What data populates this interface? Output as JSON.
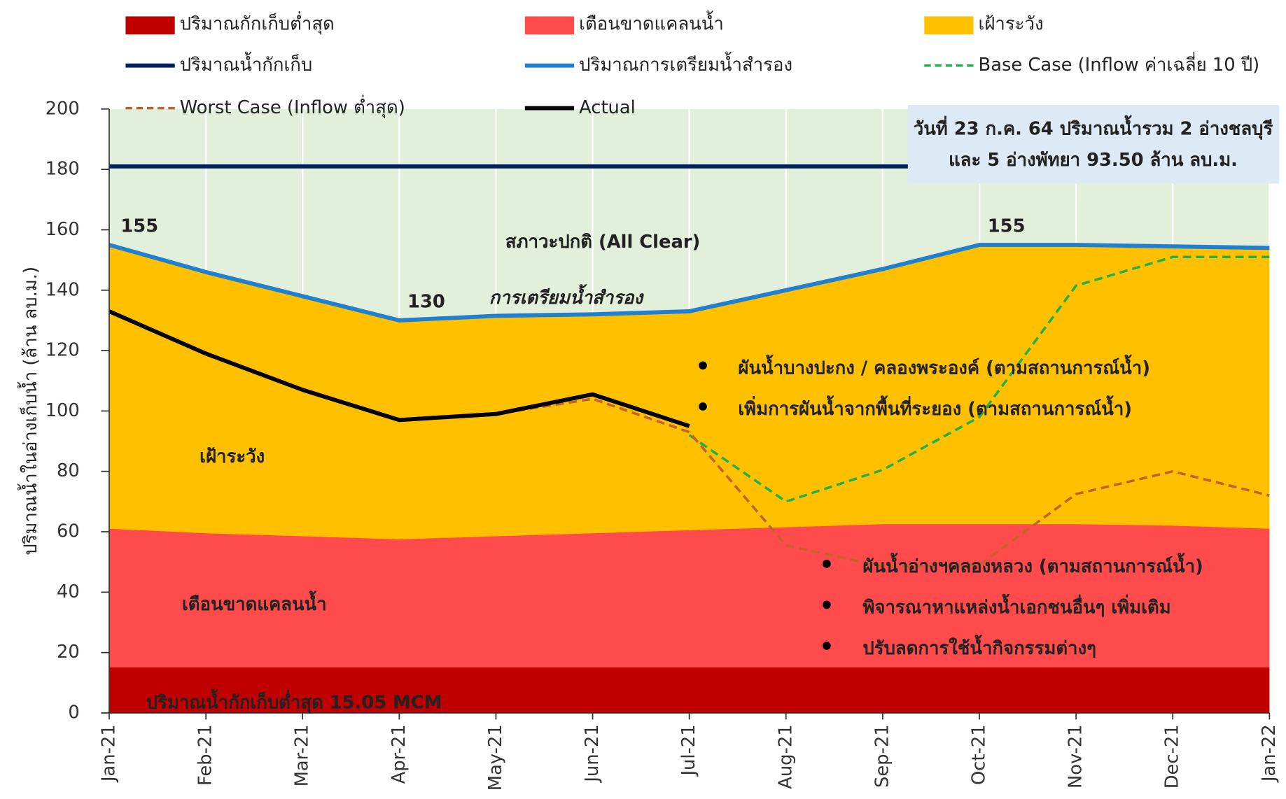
{
  "chart_data": {
    "type": "line",
    "y_label": "ปริมาณน้ำในอ่างเก็บน้ำ (ล้าน ลบ.ม.)",
    "categories": [
      "Jan-21",
      "Feb-21",
      "Mar-21",
      "Apr-21",
      "May-21",
      "Jun-21",
      "Jul-21",
      "Aug-21",
      "Sep-21",
      "Oct-21",
      "Nov-21",
      "Dec-21",
      "Jan-22"
    ],
    "ylim": [
      0,
      200
    ],
    "yticks": [
      0,
      20,
      40,
      60,
      80,
      100,
      120,
      140,
      160,
      180,
      200
    ],
    "grid": "x",
    "series": [
      {
        "name": "ปริมาณกักเก็บต่ำสุด",
        "kind": "area",
        "color": "#c00000",
        "values": [
          15.05,
          15.05,
          15.05,
          15.05,
          15.05,
          15.05,
          15.05,
          15.05,
          15.05,
          15.05,
          15.05,
          15.05,
          15.05
        ]
      },
      {
        "name": "เตือนขาดแคลนน้ำ",
        "kind": "area",
        "color": "#ff4b4b",
        "values": [
          61,
          59.5,
          58.5,
          57.5,
          58.5,
          59.5,
          60.5,
          61.5,
          62.5,
          62.5,
          62.5,
          62,
          61
        ]
      },
      {
        "name": "เฝ้าระวัง",
        "kind": "area",
        "color": "#ffc000",
        "values": [
          155,
          146,
          138,
          130,
          131.5,
          132,
          133,
          140,
          147,
          155,
          155,
          154.5,
          154
        ]
      },
      {
        "name": "ปริมาณน้ำกักเก็บ",
        "kind": "line",
        "color": "#002060",
        "values": [
          181,
          181,
          181,
          181,
          181,
          181,
          181,
          181,
          181,
          181,
          181,
          181,
          181
        ]
      },
      {
        "name": "ปริมาณการเตรียมน้ำสำรอง",
        "kind": "line",
        "color": "#1f7fd0",
        "values": [
          155,
          146,
          138,
          130,
          131.5,
          132,
          133,
          140,
          147,
          155,
          155,
          154.5,
          154
        ],
        "value_labels": [
          "155",
          null,
          null,
          "130",
          null,
          null,
          null,
          null,
          null,
          "155",
          null,
          null,
          null
        ]
      },
      {
        "name": "Base Case (Inflow ค่าเฉลี่ย 10 ปี)",
        "kind": "line",
        "dash": true,
        "color": "#22b04a",
        "values": [
          null,
          null,
          null,
          null,
          null,
          null,
          92,
          70,
          80.5,
          98,
          141.5,
          151,
          151
        ]
      },
      {
        "name": "Worst Case (Inflow ต่ำสุด)",
        "kind": "line",
        "dash": true,
        "color": "#c0632c",
        "values": [
          null,
          null,
          null,
          97,
          99,
          104,
          93,
          55.5,
          48.5,
          49,
          72.5,
          80,
          72
        ]
      },
      {
        "name": "Actual",
        "kind": "line",
        "color": "#000000",
        "values": [
          133,
          119,
          107,
          97,
          99,
          105.5,
          95,
          null,
          null,
          null,
          null,
          null,
          null
        ]
      }
    ],
    "zone_label": "สภาวะปกติ (All Clear)",
    "prep_label": "การเตรียมน้ำสำรอง",
    "watch_label": "เฝ้าระวัง",
    "warning_label": "เตือนขาดแคลนน้ำ",
    "min_label": "ปริมาณน้ำกักเก็บต่ำสุด 15.05 MCM",
    "info_box": [
      "วันที่ 23 ก.ค. 64 ปริมาณน้ำรวม 2 อ่างชลบุรี",
      "และ 5 อ่างพัทยา 93.50 ล้าน ลบ.ม."
    ],
    "bullets_upper": [
      "ผันน้ำบางปะกง / คลองพระองค์ (ตามสถานการณ์น้ำ)",
      "เพิ่มการผันน้ำจากพื้นที่ระยอง (ตามสถานการณ์น้ำ)"
    ],
    "bullets_lower": [
      "ผันน้ำอ่างฯคลองหลวง (ตามสถานการณ์น้ำ)",
      "พิจารณาหาแหล่งน้ำเอกชนอื่นๆ เพิ่มเติม",
      "ปรับลดการใช้น้ำกิจกรรมต่างๆ"
    ]
  }
}
